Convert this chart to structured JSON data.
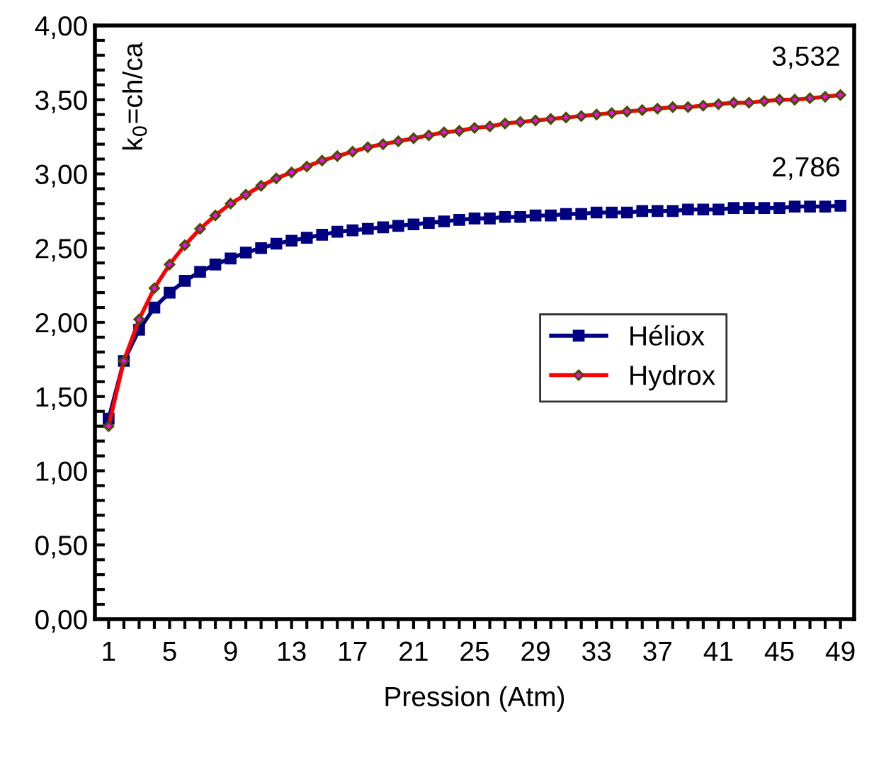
{
  "chart_data": {
    "type": "line",
    "xlabel": "Pression (Atm)",
    "ylabel": "k$_{0}$=ch/ca",
    "categories": [
      "1",
      null,
      null,
      null,
      "5",
      null,
      null,
      null,
      "9",
      null,
      null,
      null,
      "13",
      null,
      null,
      null,
      "17",
      null,
      null,
      null,
      "21",
      null,
      null,
      null,
      "25",
      null,
      null,
      null,
      "29",
      null,
      null,
      null,
      "33",
      null,
      null,
      null,
      "37",
      null,
      null,
      null,
      "41",
      null,
      null,
      null,
      "45",
      null,
      null,
      null,
      "49"
    ],
    "series": [
      {
        "name": "Héliox",
        "color": "#000080",
        "marker": "square",
        "values": [
          1.35,
          1.74,
          1.95,
          2.1,
          2.2,
          2.28,
          2.34,
          2.39,
          2.43,
          2.47,
          2.5,
          2.53,
          2.55,
          2.57,
          2.59,
          2.61,
          2.62,
          2.63,
          2.64,
          2.65,
          2.66,
          2.67,
          2.68,
          2.69,
          2.7,
          2.7,
          2.71,
          2.71,
          2.72,
          2.72,
          2.73,
          2.73,
          2.74,
          2.74,
          2.74,
          2.75,
          2.75,
          2.75,
          2.76,
          2.76,
          2.76,
          2.77,
          2.77,
          2.77,
          2.77,
          2.78,
          2.78,
          2.78,
          2.786
        ]
      },
      {
        "name": "Hydrox",
        "color": "#ff0000",
        "marker": "diamond",
        "values": [
          1.3,
          1.74,
          2.02,
          2.23,
          2.39,
          2.52,
          2.63,
          2.72,
          2.8,
          2.86,
          2.92,
          2.97,
          3.01,
          3.05,
          3.09,
          3.12,
          3.15,
          3.18,
          3.2,
          3.22,
          3.24,
          3.26,
          3.28,
          3.29,
          3.31,
          3.32,
          3.34,
          3.35,
          3.36,
          3.37,
          3.38,
          3.39,
          3.4,
          3.41,
          3.42,
          3.43,
          3.44,
          3.45,
          3.45,
          3.46,
          3.47,
          3.48,
          3.48,
          3.49,
          3.5,
          3.5,
          3.51,
          3.52,
          3.532
        ]
      }
    ],
    "annotations": [
      {
        "text": "2,786",
        "x": "49",
        "y": 2.786
      },
      {
        "text": "3,532",
        "x": "49",
        "y": 3.532
      }
    ],
    "ylim": [
      0,
      4
    ],
    "yticks": [
      {
        "value": 0,
        "label": "0,00"
      },
      {
        "value": 0.1,
        "label": null
      },
      {
        "value": 0.2,
        "label": null
      },
      {
        "value": 0.3,
        "label": null
      },
      {
        "value": 0.4,
        "label": null
      },
      {
        "value": 0.5,
        "label": "0,50"
      },
      {
        "value": 0.6,
        "label": null
      },
      {
        "value": 0.7,
        "label": null
      },
      {
        "value": 0.8,
        "label": null
      },
      {
        "value": 0.9,
        "label": null
      },
      {
        "value": 1,
        "label": "1,00"
      },
      {
        "value": 1.1,
        "label": null
      },
      {
        "value": 1.2,
        "label": null
      },
      {
        "value": 1.3,
        "label": null
      },
      {
        "value": 1.4,
        "label": null
      },
      {
        "value": 1.5,
        "label": "1,50"
      },
      {
        "value": 1.6,
        "label": null
      },
      {
        "value": 1.7,
        "label": null
      },
      {
        "value": 1.8,
        "label": null
      },
      {
        "value": 1.9,
        "label": null
      },
      {
        "value": 2,
        "label": "2,00"
      },
      {
        "value": 2.1,
        "label": null
      },
      {
        "value": 2.2,
        "label": null
      },
      {
        "value": 2.3,
        "label": null
      },
      {
        "value": 2.4,
        "label": null
      },
      {
        "value": 2.5,
        "label": "2,50"
      },
      {
        "value": 2.6,
        "label": null
      },
      {
        "value": 2.7,
        "label": null
      },
      {
        "value": 2.8,
        "label": null
      },
      {
        "value": 2.9,
        "label": null
      },
      {
        "value": 3,
        "label": "3,00"
      },
      {
        "value": 3.1,
        "label": null
      },
      {
        "value": 3.2,
        "label": null
      },
      {
        "value": 3.3,
        "label": null
      },
      {
        "value": 3.4,
        "label": null
      },
      {
        "value": 3.5,
        "label": "3,50"
      },
      {
        "value": 3.6,
        "label": null
      },
      {
        "value": 3.7,
        "label": null
      },
      {
        "value": 3.8,
        "label": null
      },
      {
        "value": 3.9,
        "label": null
      },
      {
        "value": 4,
        "label": "4,00"
      }
    ],
    "grid": false,
    "legend": "right",
    "line_style": "solid"
  }
}
